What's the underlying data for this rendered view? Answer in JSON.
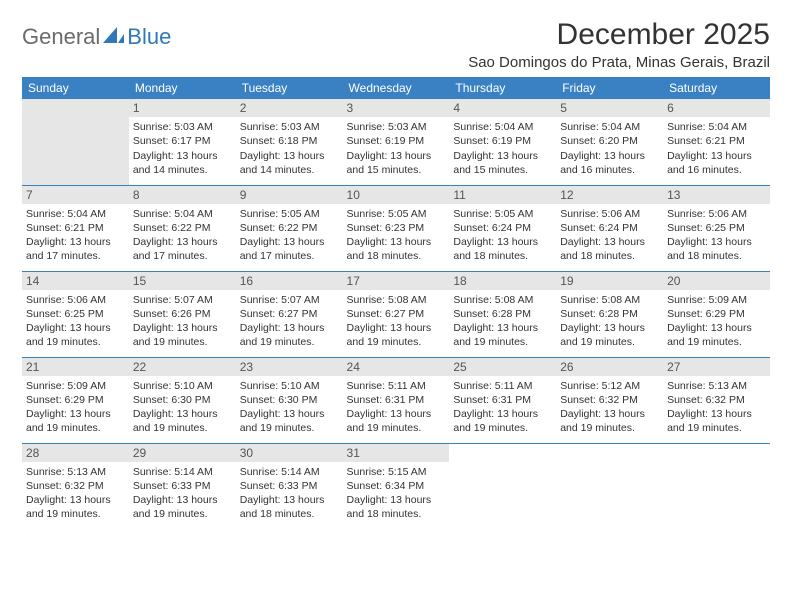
{
  "logo": {
    "text1": "General",
    "text2": "Blue"
  },
  "title": "December 2025",
  "location": "Sao Domingos do Prata, Minas Gerais, Brazil",
  "colors": {
    "header_bg": "#3a81c4",
    "header_text": "#ffffff",
    "daynum_bg": "#e6e6e6",
    "border": "#3a81c4",
    "logo_gray": "#6b6b6b",
    "logo_blue": "#2f78b9",
    "body_text": "#333333"
  },
  "weekdays": [
    "Sunday",
    "Monday",
    "Tuesday",
    "Wednesday",
    "Thursday",
    "Friday",
    "Saturday"
  ],
  "weeks": [
    [
      {
        "n": "",
        "sr": "",
        "ss": "",
        "dl": ""
      },
      {
        "n": "1",
        "sr": "Sunrise: 5:03 AM",
        "ss": "Sunset: 6:17 PM",
        "dl": "Daylight: 13 hours and 14 minutes."
      },
      {
        "n": "2",
        "sr": "Sunrise: 5:03 AM",
        "ss": "Sunset: 6:18 PM",
        "dl": "Daylight: 13 hours and 14 minutes."
      },
      {
        "n": "3",
        "sr": "Sunrise: 5:03 AM",
        "ss": "Sunset: 6:19 PM",
        "dl": "Daylight: 13 hours and 15 minutes."
      },
      {
        "n": "4",
        "sr": "Sunrise: 5:04 AM",
        "ss": "Sunset: 6:19 PM",
        "dl": "Daylight: 13 hours and 15 minutes."
      },
      {
        "n": "5",
        "sr": "Sunrise: 5:04 AM",
        "ss": "Sunset: 6:20 PM",
        "dl": "Daylight: 13 hours and 16 minutes."
      },
      {
        "n": "6",
        "sr": "Sunrise: 5:04 AM",
        "ss": "Sunset: 6:21 PM",
        "dl": "Daylight: 13 hours and 16 minutes."
      }
    ],
    [
      {
        "n": "7",
        "sr": "Sunrise: 5:04 AM",
        "ss": "Sunset: 6:21 PM",
        "dl": "Daylight: 13 hours and 17 minutes."
      },
      {
        "n": "8",
        "sr": "Sunrise: 5:04 AM",
        "ss": "Sunset: 6:22 PM",
        "dl": "Daylight: 13 hours and 17 minutes."
      },
      {
        "n": "9",
        "sr": "Sunrise: 5:05 AM",
        "ss": "Sunset: 6:22 PM",
        "dl": "Daylight: 13 hours and 17 minutes."
      },
      {
        "n": "10",
        "sr": "Sunrise: 5:05 AM",
        "ss": "Sunset: 6:23 PM",
        "dl": "Daylight: 13 hours and 18 minutes."
      },
      {
        "n": "11",
        "sr": "Sunrise: 5:05 AM",
        "ss": "Sunset: 6:24 PM",
        "dl": "Daylight: 13 hours and 18 minutes."
      },
      {
        "n": "12",
        "sr": "Sunrise: 5:06 AM",
        "ss": "Sunset: 6:24 PM",
        "dl": "Daylight: 13 hours and 18 minutes."
      },
      {
        "n": "13",
        "sr": "Sunrise: 5:06 AM",
        "ss": "Sunset: 6:25 PM",
        "dl": "Daylight: 13 hours and 18 minutes."
      }
    ],
    [
      {
        "n": "14",
        "sr": "Sunrise: 5:06 AM",
        "ss": "Sunset: 6:25 PM",
        "dl": "Daylight: 13 hours and 19 minutes."
      },
      {
        "n": "15",
        "sr": "Sunrise: 5:07 AM",
        "ss": "Sunset: 6:26 PM",
        "dl": "Daylight: 13 hours and 19 minutes."
      },
      {
        "n": "16",
        "sr": "Sunrise: 5:07 AM",
        "ss": "Sunset: 6:27 PM",
        "dl": "Daylight: 13 hours and 19 minutes."
      },
      {
        "n": "17",
        "sr": "Sunrise: 5:08 AM",
        "ss": "Sunset: 6:27 PM",
        "dl": "Daylight: 13 hours and 19 minutes."
      },
      {
        "n": "18",
        "sr": "Sunrise: 5:08 AM",
        "ss": "Sunset: 6:28 PM",
        "dl": "Daylight: 13 hours and 19 minutes."
      },
      {
        "n": "19",
        "sr": "Sunrise: 5:08 AM",
        "ss": "Sunset: 6:28 PM",
        "dl": "Daylight: 13 hours and 19 minutes."
      },
      {
        "n": "20",
        "sr": "Sunrise: 5:09 AM",
        "ss": "Sunset: 6:29 PM",
        "dl": "Daylight: 13 hours and 19 minutes."
      }
    ],
    [
      {
        "n": "21",
        "sr": "Sunrise: 5:09 AM",
        "ss": "Sunset: 6:29 PM",
        "dl": "Daylight: 13 hours and 19 minutes."
      },
      {
        "n": "22",
        "sr": "Sunrise: 5:10 AM",
        "ss": "Sunset: 6:30 PM",
        "dl": "Daylight: 13 hours and 19 minutes."
      },
      {
        "n": "23",
        "sr": "Sunrise: 5:10 AM",
        "ss": "Sunset: 6:30 PM",
        "dl": "Daylight: 13 hours and 19 minutes."
      },
      {
        "n": "24",
        "sr": "Sunrise: 5:11 AM",
        "ss": "Sunset: 6:31 PM",
        "dl": "Daylight: 13 hours and 19 minutes."
      },
      {
        "n": "25",
        "sr": "Sunrise: 5:11 AM",
        "ss": "Sunset: 6:31 PM",
        "dl": "Daylight: 13 hours and 19 minutes."
      },
      {
        "n": "26",
        "sr": "Sunrise: 5:12 AM",
        "ss": "Sunset: 6:32 PM",
        "dl": "Daylight: 13 hours and 19 minutes."
      },
      {
        "n": "27",
        "sr": "Sunrise: 5:13 AM",
        "ss": "Sunset: 6:32 PM",
        "dl": "Daylight: 13 hours and 19 minutes."
      }
    ],
    [
      {
        "n": "28",
        "sr": "Sunrise: 5:13 AM",
        "ss": "Sunset: 6:32 PM",
        "dl": "Daylight: 13 hours and 19 minutes."
      },
      {
        "n": "29",
        "sr": "Sunrise: 5:14 AM",
        "ss": "Sunset: 6:33 PM",
        "dl": "Daylight: 13 hours and 19 minutes."
      },
      {
        "n": "30",
        "sr": "Sunrise: 5:14 AM",
        "ss": "Sunset: 6:33 PM",
        "dl": "Daylight: 13 hours and 18 minutes."
      },
      {
        "n": "31",
        "sr": "Sunrise: 5:15 AM",
        "ss": "Sunset: 6:34 PM",
        "dl": "Daylight: 13 hours and 18 minutes."
      },
      {
        "n": "",
        "sr": "",
        "ss": "",
        "dl": ""
      },
      {
        "n": "",
        "sr": "",
        "ss": "",
        "dl": ""
      },
      {
        "n": "",
        "sr": "",
        "ss": "",
        "dl": ""
      }
    ]
  ]
}
